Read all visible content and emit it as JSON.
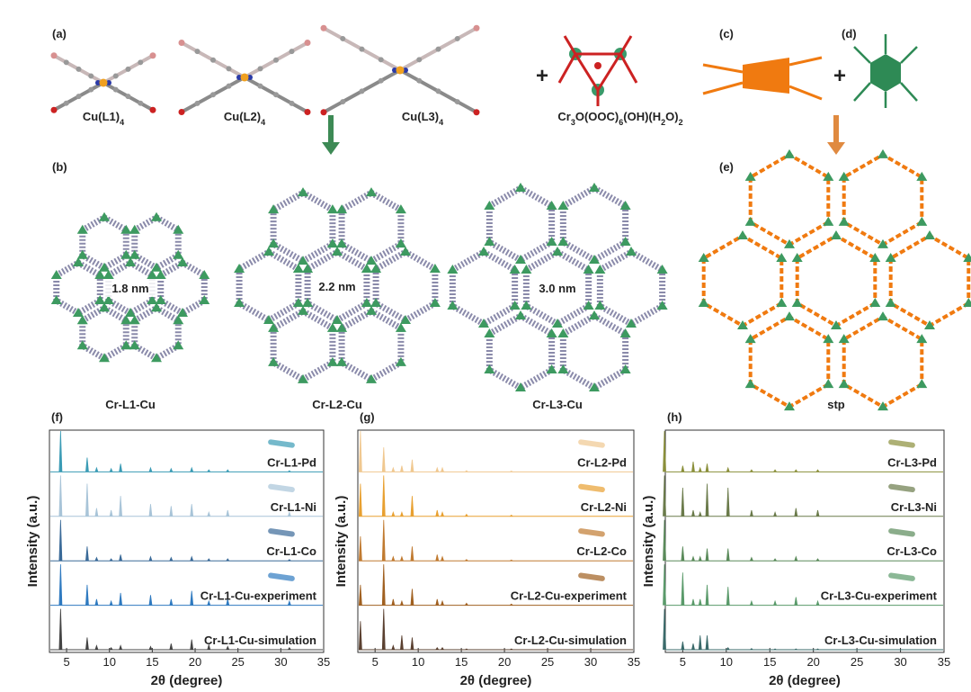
{
  "labels": {
    "a": "(a)",
    "b": "(b)",
    "c": "(c)",
    "d": "(d)",
    "e": "(e)"
  },
  "plus_signs": [
    "+",
    "+"
  ],
  "molecules": [
    {
      "formula": [
        "Cu(L1)",
        "4"
      ]
    },
    {
      "formula": [
        "Cu(L2)",
        "4"
      ]
    },
    {
      "formula": [
        "Cu(L3)",
        "4"
      ]
    }
  ],
  "cluster": {
    "formula": [
      "Cr",
      "3",
      "O(OOC)",
      "6",
      "(OH)(H",
      "2",
      "O)",
      "2"
    ]
  },
  "frameworks": [
    {
      "name": "Cr-L1-Cu",
      "pore": "1.8 nm"
    },
    {
      "name": "Cr-L2-Cu",
      "pore": "2.2 nm"
    },
    {
      "name": "Cr-L3-Cu",
      "pore": "3.0 nm"
    }
  ],
  "net": {
    "name": "stp"
  },
  "charts": [
    {
      "type": "line",
      "panel": "(f)",
      "xlabel": "2θ (degree)",
      "ylabel": "Intensity (a.u.)",
      "xlim": [
        3,
        35
      ],
      "xticks": [
        5,
        10,
        15,
        20,
        25,
        30,
        35
      ],
      "peak_positions": [
        4.3,
        7.4,
        8.5,
        10.2,
        11.3,
        14.8,
        17.2,
        19.6,
        21.6,
        23.8,
        31.0
      ],
      "series": [
        {
          "name": "Cr-L1-Pd",
          "color": "#3a9bb5",
          "heights": [
            1,
            0.35,
            0.1,
            0.08,
            0.2,
            0.1,
            0.08,
            0.1,
            0.05,
            0.05,
            0.03
          ]
        },
        {
          "name": "Cr-L1-Ni",
          "color": "#a8c4d8",
          "heights": [
            1,
            0.8,
            0.2,
            0.15,
            0.5,
            0.3,
            0.25,
            0.3,
            0.1,
            0.15,
            0.1
          ]
        },
        {
          "name": "Cr-L1-Co",
          "color": "#3a6a98",
          "heights": [
            1,
            0.35,
            0.08,
            0.05,
            0.15,
            0.1,
            0.08,
            0.1,
            0.05,
            0.05,
            0.03
          ]
        },
        {
          "name": "Cr-L1-Cu-experiment",
          "color": "#2f7ac0",
          "heights": [
            1,
            0.5,
            0.15,
            0.1,
            0.3,
            0.25,
            0.15,
            0.35,
            0.1,
            0.15,
            0.1
          ]
        },
        {
          "name": "Cr-L1-Cu-simulation",
          "color": "#444444",
          "heights": [
            1,
            0.3,
            0.1,
            0.05,
            0.1,
            0.08,
            0.15,
            0.25,
            0.12,
            0.08,
            0.05
          ]
        }
      ]
    },
    {
      "type": "line",
      "panel": "(g)",
      "xlabel": "2θ (degree)",
      "ylabel": "Intensity (a.u.)",
      "xlim": [
        3,
        35
      ],
      "xticks": [
        5,
        10,
        15,
        20,
        25,
        30,
        35
      ],
      "peak_positions": [
        3.3,
        6.0,
        7.1,
        8.1,
        9.3,
        12.2,
        12.8,
        15.6,
        20.8
      ],
      "series": [
        {
          "name": "Cr-L2-Pd",
          "color": "#f0c890",
          "heights": [
            1,
            0.6,
            0.1,
            0.15,
            0.3,
            0.1,
            0.1,
            0.03,
            0.02
          ]
        },
        {
          "name": "Cr-L2-Ni",
          "color": "#e8a030",
          "heights": [
            0.8,
            1,
            0.1,
            0.1,
            0.5,
            0.15,
            0.1,
            0.05,
            0.03
          ]
        },
        {
          "name": "Cr-L2-Co",
          "color": "#c07a30",
          "heights": [
            0.6,
            1,
            0.1,
            0.1,
            0.35,
            0.15,
            0.1,
            0.03,
            0.02
          ]
        },
        {
          "name": "Cr-L2-Cu-experiment",
          "color": "#a06020",
          "heights": [
            0.5,
            1,
            0.15,
            0.1,
            0.4,
            0.15,
            0.1,
            0.05,
            0.03
          ]
        },
        {
          "name": "Cr-L2-Cu-simulation",
          "color": "#5a4030",
          "heights": [
            0.7,
            1,
            0.1,
            0.35,
            0.3,
            0.05,
            0.05,
            0.02,
            0.02
          ]
        }
      ]
    },
    {
      "type": "line",
      "panel": "(h)",
      "xlabel": "2θ (degree)",
      "ylabel": "Intensity (a.u.)",
      "xlim": [
        3,
        35
      ],
      "xticks": [
        5,
        10,
        15,
        20,
        25,
        30,
        35
      ],
      "peak_positions": [
        2.9,
        5.0,
        6.2,
        7.0,
        7.8,
        10.2,
        12.9,
        15.6,
        18.0,
        20.5
      ],
      "series": [
        {
          "name": "Cr-L3-Pd",
          "color": "#8a8f3a",
          "heights": [
            1,
            0.15,
            0.25,
            0.1,
            0.2,
            0.1,
            0.05,
            0.05,
            0.05,
            0.05
          ]
        },
        {
          "name": "Cr-L3-Ni",
          "color": "#6a7a4a",
          "heights": [
            1,
            0.7,
            0.15,
            0.1,
            0.8,
            0.7,
            0.15,
            0.1,
            0.2,
            0.15
          ]
        },
        {
          "name": "Cr-L3-Co",
          "color": "#5a8a5a",
          "heights": [
            1,
            0.35,
            0.1,
            0.1,
            0.3,
            0.3,
            0.08,
            0.05,
            0.1,
            0.05
          ]
        },
        {
          "name": "Cr-L3-Cu-experiment",
          "color": "#5a9a6a",
          "heights": [
            1,
            0.8,
            0.15,
            0.15,
            0.5,
            0.45,
            0.1,
            0.1,
            0.2,
            0.1
          ]
        },
        {
          "name": "Cr-L3-Cu-simulation",
          "color": "#3a6a6a",
          "heights": [
            1,
            0.2,
            0.15,
            0.35,
            0.35,
            0.05,
            0.03,
            0.02,
            0.02,
            0.02
          ]
        }
      ]
    }
  ]
}
